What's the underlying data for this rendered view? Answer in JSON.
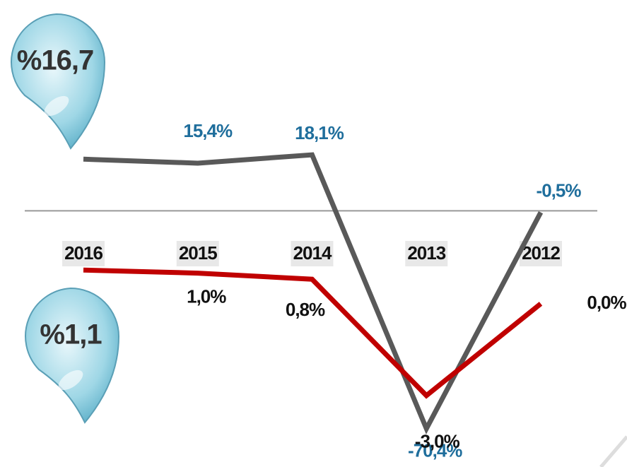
{
  "chart_data": {
    "type": "line",
    "categories": [
      "2016",
      "2015",
      "2014",
      "2013",
      "2012"
    ],
    "ylim": [
      -78,
      59
    ],
    "y2lim": [
      -4.85,
      9
    ],
    "series": [
      {
        "name": null,
        "color": "#595959",
        "values": [
          16.7,
          15.4,
          18.1,
          -70.4,
          -0.5
        ],
        "value_labels": [
          "%16,7",
          "15,4%",
          "18,1%",
          "-70,4%",
          "-0,5%"
        ],
        "label_color": "#1f6e9c"
      },
      {
        "name": null,
        "color": "#c00000",
        "values": [
          1.1,
          1.0,
          0.8,
          -3.0,
          0.0
        ],
        "value_labels": [
          "%1,1",
          "1,0%",
          "0,8%",
          "-3,0%",
          "0,0%"
        ],
        "label_color": "#111111",
        "axis": "y2"
      }
    ]
  }
}
